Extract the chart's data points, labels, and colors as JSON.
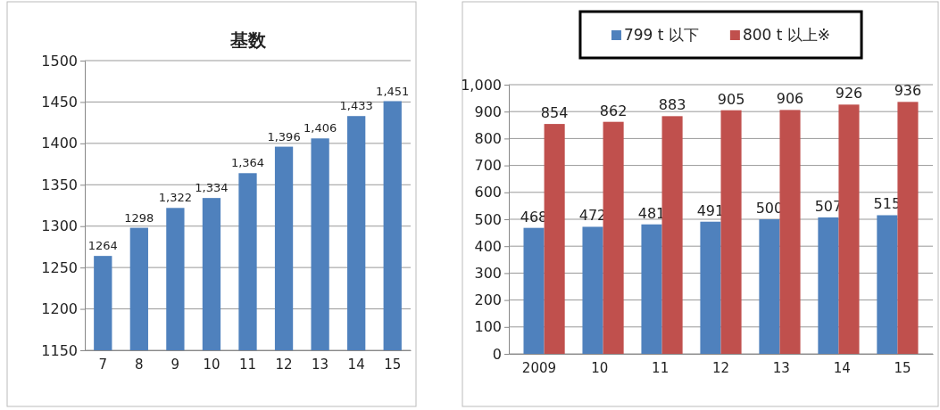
{
  "chart_data": [
    {
      "type": "bar",
      "title": "基数",
      "categories": [
        "7",
        "8",
        "9",
        "10",
        "11",
        "12",
        "13",
        "14",
        "15"
      ],
      "values": [
        1264,
        1298,
        1322,
        1334,
        1364,
        1396,
        1406,
        1433,
        1451
      ],
      "value_labels": [
        "1264",
        "1298",
        "1,322",
        "1,334",
        "1,364",
        "1,396",
        "1,406",
        "1,433",
        "1,451"
      ],
      "color": "#4f81bd",
      "ylim": [
        1150,
        1500
      ],
      "yticks": [
        1150,
        1200,
        1250,
        1300,
        1350,
        1400,
        1450,
        1500
      ],
      "grid": "y"
    },
    {
      "type": "bar",
      "categories": [
        "2009",
        "10",
        "11",
        "12",
        "13",
        "14",
        "15"
      ],
      "series": [
        {
          "name": "799 t 以下",
          "color": "#4f81bd",
          "values": [
            468,
            472,
            481,
            491,
            500,
            507,
            515
          ]
        },
        {
          "name": "800 t 以上※",
          "color": "#c0504d",
          "values": [
            854,
            862,
            883,
            905,
            906,
            926,
            936
          ]
        }
      ],
      "ylim": [
        0,
        1000
      ],
      "yticks": [
        0,
        100,
        200,
        300,
        400,
        500,
        600,
        700,
        800,
        900,
        {
          "value": 1000,
          "label": "1,000"
        }
      ],
      "grid": "y",
      "legend": "top",
      "data_labels": true
    }
  ]
}
